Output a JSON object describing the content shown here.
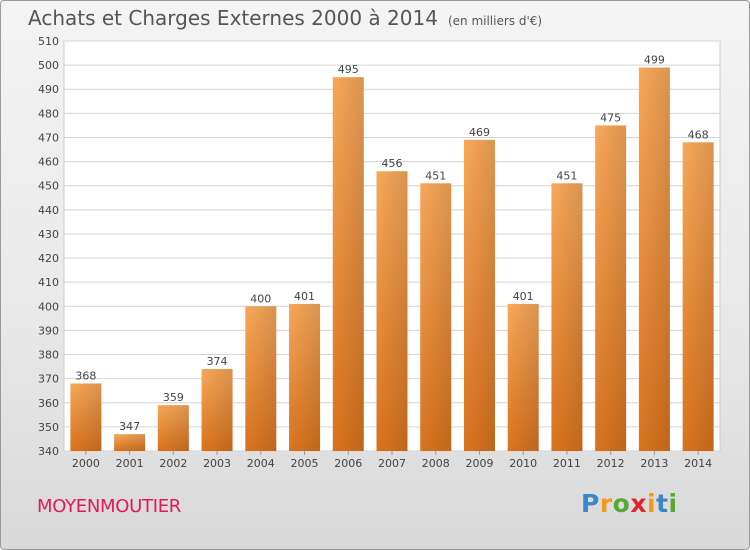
{
  "title": "Achats et Charges Externes 2000 à 2014",
  "unit_label": "(en milliers d'€)",
  "city": "MOYENMOUTIER",
  "logo": "Proxiti",
  "colors": {
    "bar_light": "#f7a457",
    "bar_dark": "#d9741f",
    "title": "#555555",
    "city": "#e0195a"
  },
  "chart_data": {
    "type": "bar",
    "title": "Achats et Charges Externes 2000 à 2014",
    "categories": [
      "2000",
      "2001",
      "2002",
      "2003",
      "2004",
      "2005",
      "2006",
      "2007",
      "2008",
      "2009",
      "2010",
      "2011",
      "2012",
      "2013",
      "2014"
    ],
    "values": [
      368,
      347,
      359,
      374,
      400,
      401,
      495,
      456,
      451,
      469,
      401,
      451,
      475,
      499,
      468
    ],
    "ylim": [
      340,
      510
    ],
    "yticks": [
      340,
      350,
      360,
      370,
      380,
      390,
      400,
      410,
      420,
      430,
      440,
      450,
      460,
      470,
      480,
      490,
      500,
      510
    ],
    "grid": true,
    "xlabel": "",
    "ylabel": ""
  }
}
